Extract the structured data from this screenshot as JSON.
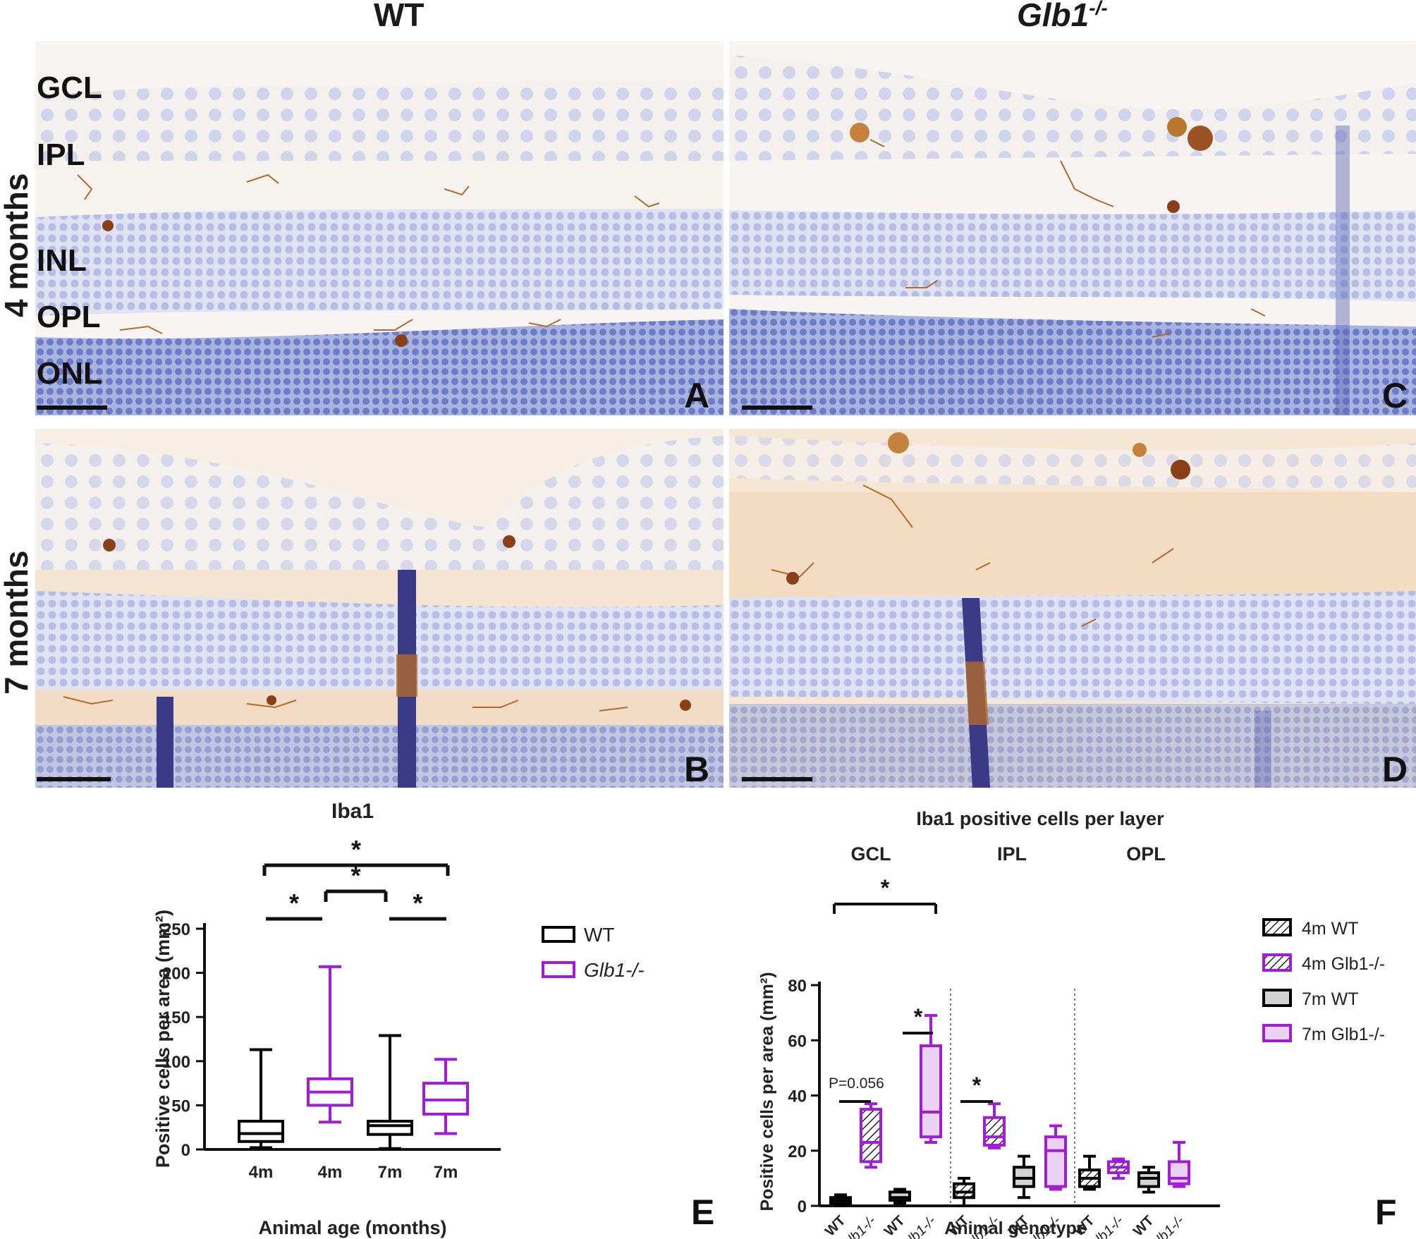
{
  "figure": {
    "col_labels": {
      "wt": "WT",
      "ko_base": "Glb1",
      "ko_sup": "-/-"
    },
    "row_labels": {
      "r1": "4 months",
      "r2": "7 months"
    },
    "layer_labels": [
      "GCL",
      "IPL",
      "INL",
      "OPL",
      "ONL"
    ],
    "panel_letters": {
      "a": "A",
      "b": "B",
      "c": "C",
      "d": "D",
      "e": "E",
      "f": "F"
    }
  },
  "colors": {
    "wt": "#000000",
    "ko": "#a21cd8",
    "ko_fill": "#ead2f7",
    "wt7_fill": "#d3d3d3",
    "hematoxylin": "#7888cc",
    "dab": "#b06a2c",
    "tissue_bg": "#f6efe8"
  },
  "chart_data": [
    {
      "type": "box",
      "title": "Iba1",
      "xlabel": "Animal age (months)",
      "ylabel": "Positive cells per area (mm²)",
      "ylim": [
        0,
        250
      ],
      "yticks": [
        0,
        50,
        100,
        150,
        200,
        250
      ],
      "categories": [
        "4m",
        "4m",
        "7m",
        "7m"
      ],
      "legend": [
        "WT",
        "Glb1-/-"
      ],
      "legend_position": "right",
      "series": [
        {
          "name": "WT",
          "group": "4m",
          "min": 2,
          "q1": 9,
          "median": 18,
          "q3": 32,
          "max": 113
        },
        {
          "name": "Glb1-/-",
          "group": "4m",
          "min": 31,
          "q1": 50,
          "median": 65,
          "q3": 80,
          "max": 207
        },
        {
          "name": "WT",
          "group": "7m",
          "min": 1,
          "q1": 17,
          "median": 27,
          "q3": 32,
          "max": 129
        },
        {
          "name": "Glb1-/-",
          "group": "7m",
          "min": 18,
          "q1": 40,
          "median": 56,
          "q3": 75,
          "max": 102
        }
      ],
      "significance": [
        {
          "from": 0,
          "to": 3,
          "label": "*"
        },
        {
          "from": 1,
          "to": 2,
          "label": "*"
        },
        {
          "from": 0,
          "to": 1,
          "label": "*"
        },
        {
          "from": 2,
          "to": 3,
          "label": "*"
        }
      ]
    },
    {
      "type": "box",
      "title": "Iba1 positive cells per layer",
      "xlabel": "Animal genotype",
      "ylabel": "Positive cells per area (mm²)",
      "ylim": [
        0,
        80
      ],
      "yticks": [
        0,
        20,
        40,
        60,
        80
      ],
      "layers": [
        "GCL",
        "IPL",
        "OPL"
      ],
      "tick_labels": [
        "WT",
        "Glb1-/-",
        "WT",
        "Glb1-/-",
        "WT",
        "Glb1-/-",
        "WT",
        "Glb1-/-",
        "WT",
        "Glb1-/-",
        "WT",
        "Glb1-/-"
      ],
      "legend": [
        "4m WT",
        "4m Glb1-/-",
        "7m WT",
        "7m Glb1-/-"
      ],
      "legend_position": "right",
      "boxes": [
        {
          "layer": "GCL",
          "group": "4m WT",
          "min": 0,
          "q1": 1,
          "median": 2,
          "q3": 3,
          "max": 4
        },
        {
          "layer": "GCL",
          "group": "4m Glb1-/-",
          "min": 14,
          "q1": 16,
          "median": 23,
          "q3": 35,
          "max": 37
        },
        {
          "layer": "GCL",
          "group": "7m WT",
          "min": 1,
          "q1": 2,
          "median": 3,
          "q3": 5,
          "max": 6
        },
        {
          "layer": "GCL",
          "group": "7m Glb1-/-",
          "min": 23,
          "q1": 25,
          "median": 34,
          "q3": 58,
          "max": 69
        },
        {
          "layer": "IPL",
          "group": "4m WT",
          "min": 0,
          "q1": 3,
          "median": 5,
          "q3": 8,
          "max": 10
        },
        {
          "layer": "IPL",
          "group": "4m Glb1-/-",
          "min": 21,
          "q1": 22,
          "median": 25,
          "q3": 32,
          "max": 37
        },
        {
          "layer": "IPL",
          "group": "7m WT",
          "min": 3,
          "q1": 7,
          "median": 10,
          "q3": 14,
          "max": 18
        },
        {
          "layer": "IPL",
          "group": "7m Glb1-/-",
          "min": 6,
          "q1": 7,
          "median": 20,
          "q3": 25,
          "max": 29
        },
        {
          "layer": "OPL",
          "group": "4m WT",
          "min": 6,
          "q1": 7,
          "median": 10,
          "q3": 13,
          "max": 18
        },
        {
          "layer": "OPL",
          "group": "4m Glb1-/-",
          "min": 10,
          "q1": 12,
          "median": 14,
          "q3": 16,
          "max": 17
        },
        {
          "layer": "OPL",
          "group": "7m WT",
          "min": 5,
          "q1": 7,
          "median": 10,
          "q3": 12,
          "max": 14
        },
        {
          "layer": "OPL",
          "group": "7m Glb1-/-",
          "min": 7,
          "q1": 8,
          "median": 10,
          "q3": 16,
          "max": 23
        }
      ],
      "annotations": [
        {
          "text": "P=0.056",
          "from": 0,
          "to": 1
        },
        {
          "text": "*",
          "from": 2,
          "to": 3
        },
        {
          "text": "*",
          "from": 0,
          "to": 3
        },
        {
          "text": "*",
          "from": 4,
          "to": 5
        }
      ]
    }
  ]
}
